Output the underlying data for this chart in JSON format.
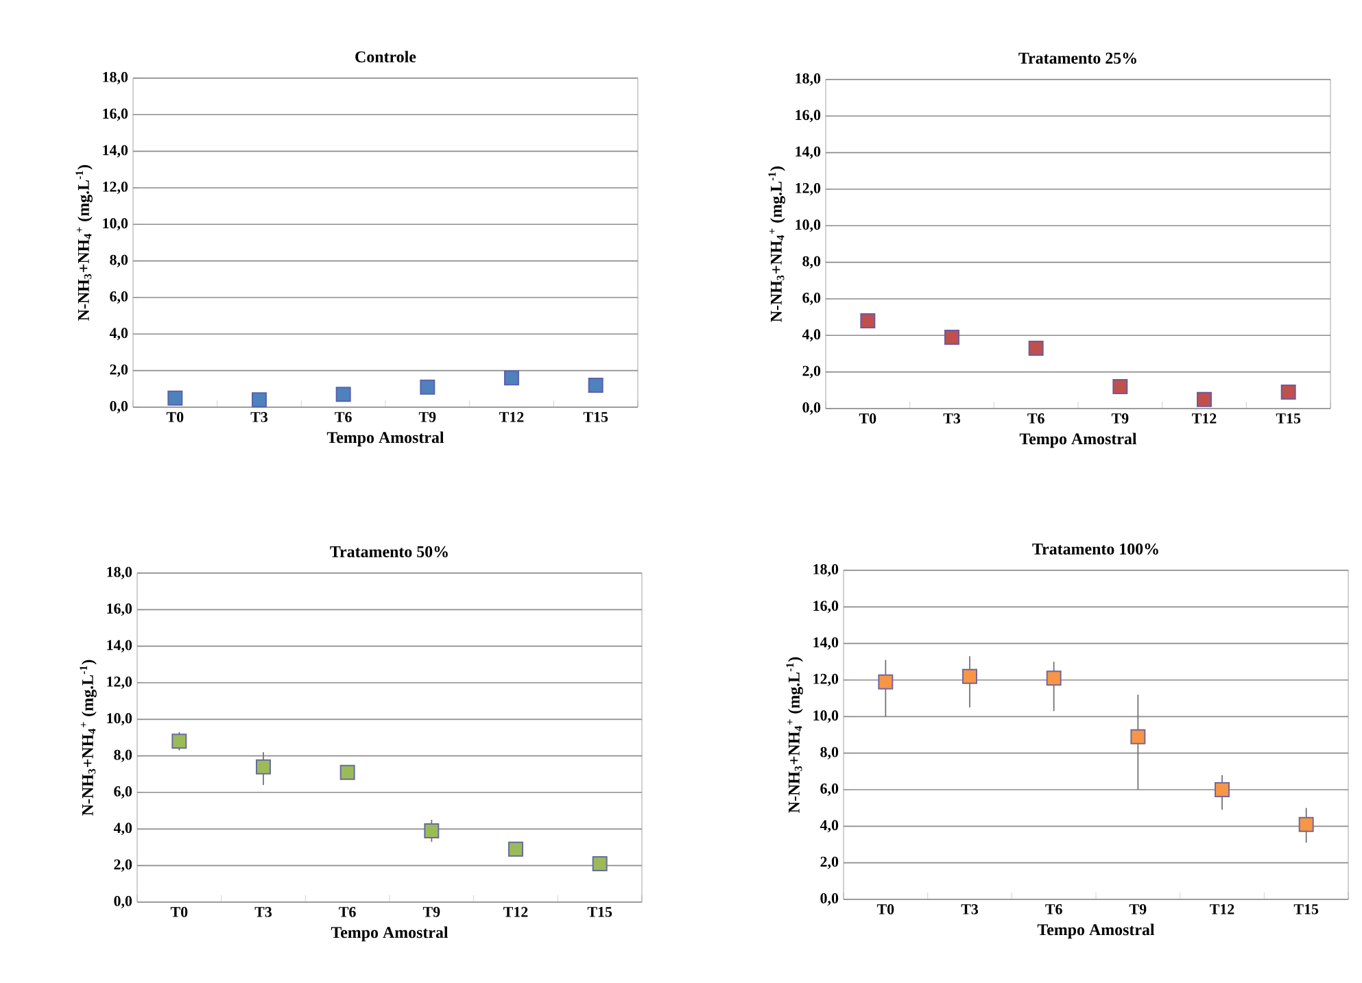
{
  "chart_data": [
    {
      "type": "scatter",
      "title": "Controle",
      "xlabel": "Tempo Amostral",
      "ylabel": "N-NH$_{3}$+NH$_{4}$$^{+}$ (mg.L$^{-1}$)",
      "categories": [
        "T0",
        "T3",
        "T6",
        "T9",
        "T12",
        "T15"
      ],
      "series": [
        {
          "color": "#4f81bd",
          "values": [
            0.5,
            0.4,
            0.7,
            1.1,
            1.6,
            1.2
          ]
        }
      ],
      "ylim": [
        0,
        18
      ],
      "yticks": [
        {
          "value": 0,
          "label": "0,0"
        },
        {
          "value": 2,
          "label": "2,0"
        },
        {
          "value": 4,
          "label": "4,0"
        },
        {
          "value": 6,
          "label": "6,0"
        },
        {
          "value": 8,
          "label": "8,0"
        },
        {
          "value": 10,
          "label": "10,0"
        },
        {
          "value": 12,
          "label": "12,0"
        },
        {
          "value": 14,
          "label": "14,0"
        },
        {
          "value": 16,
          "label": "16,0"
        },
        {
          "value": 18,
          "label": "18,0"
        }
      ],
      "grid": "y",
      "marker": "square"
    },
    {
      "type": "scatter",
      "title": "Tratamento 25%",
      "xlabel": "Tempo Amostral",
      "ylabel": "N-NH$_{3}$+NH$_{4}$$^{+}$ (mg.L$^{-1}$)",
      "categories": [
        "T0",
        "T3",
        "T6",
        "T9",
        "T12",
        "T15"
      ],
      "series": [
        {
          "color": "#c0504d",
          "values": [
            4.8,
            3.9,
            3.3,
            1.2,
            0.5,
            0.9
          ]
        }
      ],
      "ylim": [
        0,
        18
      ],
      "yticks": [
        {
          "value": 0,
          "label": "0,0"
        },
        {
          "value": 2,
          "label": "2,0"
        },
        {
          "value": 4,
          "label": "4,0"
        },
        {
          "value": 6,
          "label": "6,0"
        },
        {
          "value": 8,
          "label": "8,0"
        },
        {
          "value": 10,
          "label": "10,0"
        },
        {
          "value": 12,
          "label": "12,0"
        },
        {
          "value": 14,
          "label": "14,0"
        },
        {
          "value": 16,
          "label": "16,0"
        },
        {
          "value": 18,
          "label": "18,0"
        }
      ],
      "grid": "y",
      "marker": "square"
    },
    {
      "type": "scatter",
      "title": "Tratamento 50%",
      "xlabel": "Tempo Amostral",
      "ylabel": "N-NH$_{3}$+NH$_{4}$$^{+}$ (mg.L$^{-1}$)",
      "categories": [
        "T0",
        "T3",
        "T6",
        "T9",
        "T12",
        "T15"
      ],
      "series": [
        {
          "color": "#9bbb59",
          "values": [
            8.8,
            7.4,
            7.1,
            3.9,
            2.9,
            2.1
          ],
          "errors": [
            0.5,
            [
              6.4,
              8.2
            ],
            null,
            0.6,
            null,
            null
          ]
        }
      ],
      "ylim": [
        0,
        18
      ],
      "yticks": [
        {
          "value": 0,
          "label": "0,0"
        },
        {
          "value": 2,
          "label": "2,0"
        },
        {
          "value": 4,
          "label": "4,0"
        },
        {
          "value": 6,
          "label": "6,0"
        },
        {
          "value": 8,
          "label": "8,0"
        },
        {
          "value": 10,
          "label": "10,0"
        },
        {
          "value": 12,
          "label": "12,0"
        },
        {
          "value": 14,
          "label": "14,0"
        },
        {
          "value": 16,
          "label": "16,0"
        },
        {
          "value": 18,
          "label": "18,0"
        }
      ],
      "grid": "y",
      "marker": "square"
    },
    {
      "type": "scatter",
      "title": "Tratamento 100%",
      "xlabel": "Tempo Amostral",
      "ylabel": "N-NH$_{3}$+NH$_{4}$$^{+}$ (mg.L$^{-1}$)",
      "categories": [
        "T0",
        "T3",
        "T6",
        "T9",
        "T12",
        "T15"
      ],
      "series": [
        {
          "color": "#f79646",
          "values": [
            11.9,
            12.2,
            12.1,
            8.9,
            6.0,
            4.1
          ],
          "errors": [
            [
              10.0,
              13.1
            ],
            [
              10.5,
              13.3
            ],
            [
              10.3,
              13.0
            ],
            [
              6.0,
              11.2
            ],
            [
              4.9,
              6.8
            ],
            [
              3.1,
              5.0
            ]
          ]
        }
      ],
      "ylim": [
        0,
        18
      ],
      "yticks": [
        {
          "value": 0,
          "label": "0,0"
        },
        {
          "value": 2,
          "label": "2,0"
        },
        {
          "value": 4,
          "label": "4,0"
        },
        {
          "value": 6,
          "label": "6,0"
        },
        {
          "value": 8,
          "label": "8,0"
        },
        {
          "value": 10,
          "label": "10,0"
        },
        {
          "value": 12,
          "label": "12,0"
        },
        {
          "value": 14,
          "label": "14,0"
        },
        {
          "value": 16,
          "label": "16,0"
        },
        {
          "value": 18,
          "label": "18,0"
        }
      ],
      "grid": "y",
      "marker": "square"
    }
  ]
}
